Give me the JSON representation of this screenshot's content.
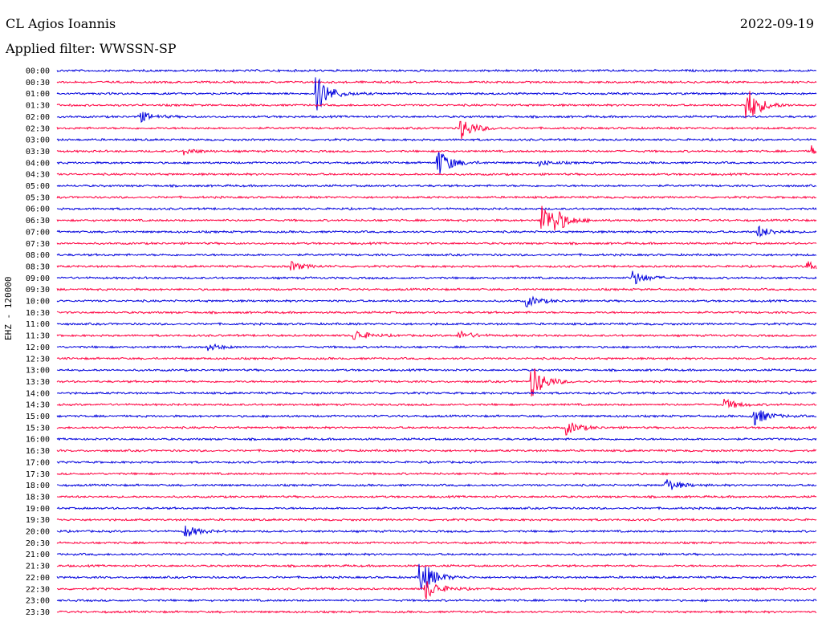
{
  "header": {
    "station": "CL Agios Ioannis",
    "date": "2022-09-19",
    "filter": "Applied filter: WWSSN-SP"
  },
  "axis": {
    "ylabel": "EHZ - 120000"
  },
  "colors": {
    "primary": "#0000dd",
    "secondary": "#ff0040"
  },
  "chart_data": {
    "type": "line",
    "title": "CL Agios Ioannis",
    "subtitle": "Applied filter: WWSSN-SP",
    "ylabel": "EHZ - 120000",
    "xlabel": "",
    "grid": false,
    "row_labels": [
      "00:00",
      "00:30",
      "01:00",
      "01:30",
      "02:00",
      "02:30",
      "03:00",
      "03:30",
      "04:00",
      "04:30",
      "05:00",
      "05:30",
      "06:00",
      "06:30",
      "07:00",
      "07:30",
      "08:00",
      "08:30",
      "09:00",
      "09:30",
      "10:00",
      "10:30",
      "11:00",
      "11:30",
      "12:00",
      "12:30",
      "13:00",
      "13:30",
      "14:00",
      "14:30",
      "15:00",
      "15:30",
      "16:00",
      "16:30",
      "17:00",
      "17:30",
      "18:00",
      "18:30",
      "19:00",
      "19:30",
      "20:00",
      "20:30",
      "21:00",
      "21:30",
      "22:00",
      "22:30",
      "23:00",
      "23:30"
    ],
    "row_colors": [
      "blue",
      "red"
    ],
    "events": [
      {
        "row": 2,
        "minute": 10.2,
        "amplitude": 1.0
      },
      {
        "row": 3,
        "minute": 27.2,
        "amplitude": 1.0
      },
      {
        "row": 4,
        "minute": 3.2,
        "amplitude": 0.3
      },
      {
        "row": 5,
        "minute": 15.9,
        "amplitude": 0.6
      },
      {
        "row": 7,
        "minute": 5.0,
        "amplitude": 0.15
      },
      {
        "row": 7,
        "minute": 29.8,
        "amplitude": 0.25
      },
      {
        "row": 8,
        "minute": 15.0,
        "amplitude": 0.75
      },
      {
        "row": 8,
        "minute": 19.0,
        "amplitude": 0.15
      },
      {
        "row": 13,
        "minute": 19.1,
        "amplitude": 1.0
      },
      {
        "row": 13,
        "minute": 19.6,
        "amplitude": 0.4
      },
      {
        "row": 14,
        "minute": 27.6,
        "amplitude": 0.35
      },
      {
        "row": 17,
        "minute": 9.2,
        "amplitude": 0.25
      },
      {
        "row": 17,
        "minute": 29.6,
        "amplitude": 0.3
      },
      {
        "row": 18,
        "minute": 22.7,
        "amplitude": 0.4
      },
      {
        "row": 20,
        "minute": 18.5,
        "amplitude": 0.3
      },
      {
        "row": 23,
        "minute": 11.7,
        "amplitude": 0.3
      },
      {
        "row": 23,
        "minute": 15.8,
        "amplitude": 0.25
      },
      {
        "row": 24,
        "minute": 5.9,
        "amplitude": 0.2
      },
      {
        "row": 27,
        "minute": 18.7,
        "amplitude": 0.9
      },
      {
        "row": 29,
        "minute": 26.3,
        "amplitude": 0.3
      },
      {
        "row": 30,
        "minute": 27.4,
        "amplitude": 0.6
      },
      {
        "row": 31,
        "minute": 20.1,
        "amplitude": 0.35
      },
      {
        "row": 36,
        "minute": 24.0,
        "amplitude": 0.35
      },
      {
        "row": 40,
        "minute": 5.0,
        "amplitude": 0.35
      },
      {
        "row": 44,
        "minute": 14.3,
        "amplitude": 1.0
      },
      {
        "row": 45,
        "minute": 14.5,
        "amplitude": 0.6
      }
    ]
  }
}
